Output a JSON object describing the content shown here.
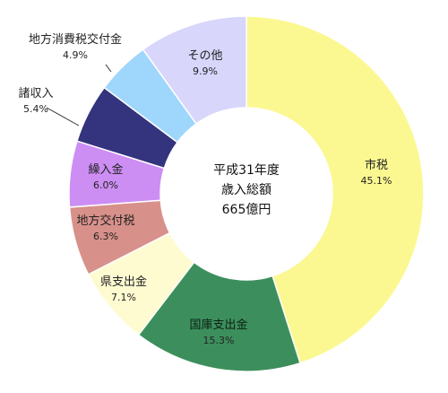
{
  "chart_data": {
    "type": "pie",
    "donut": true,
    "center_text": [
      "平成31年度",
      "歳入総額",
      "665億円"
    ],
    "slices": [
      {
        "label": "市税",
        "value": 45.1,
        "display": "45.1%",
        "color": "#fbf891"
      },
      {
        "label": "国庫支出金",
        "value": 15.3,
        "display": "15.3%",
        "color": "#3c8f5c"
      },
      {
        "label": "県支出金",
        "value": 7.1,
        "display": "7.1%",
        "color": "#fffbd1"
      },
      {
        "label": "地方交付税",
        "value": 6.3,
        "display": "6.3%",
        "color": "#d8908a"
      },
      {
        "label": "繰入金",
        "value": 6.0,
        "display": "6.0%",
        "color": "#cd8ef3"
      },
      {
        "label": "諸収入",
        "value": 5.4,
        "display": "5.4%",
        "color": "#34337e"
      },
      {
        "label": "地方消費税交付金",
        "value": 4.9,
        "display": "4.9%",
        "color": "#9fd6fb"
      },
      {
        "label": "その他",
        "value": 9.9,
        "display": "9.9%",
        "color": "#d8d6fb"
      }
    ]
  }
}
